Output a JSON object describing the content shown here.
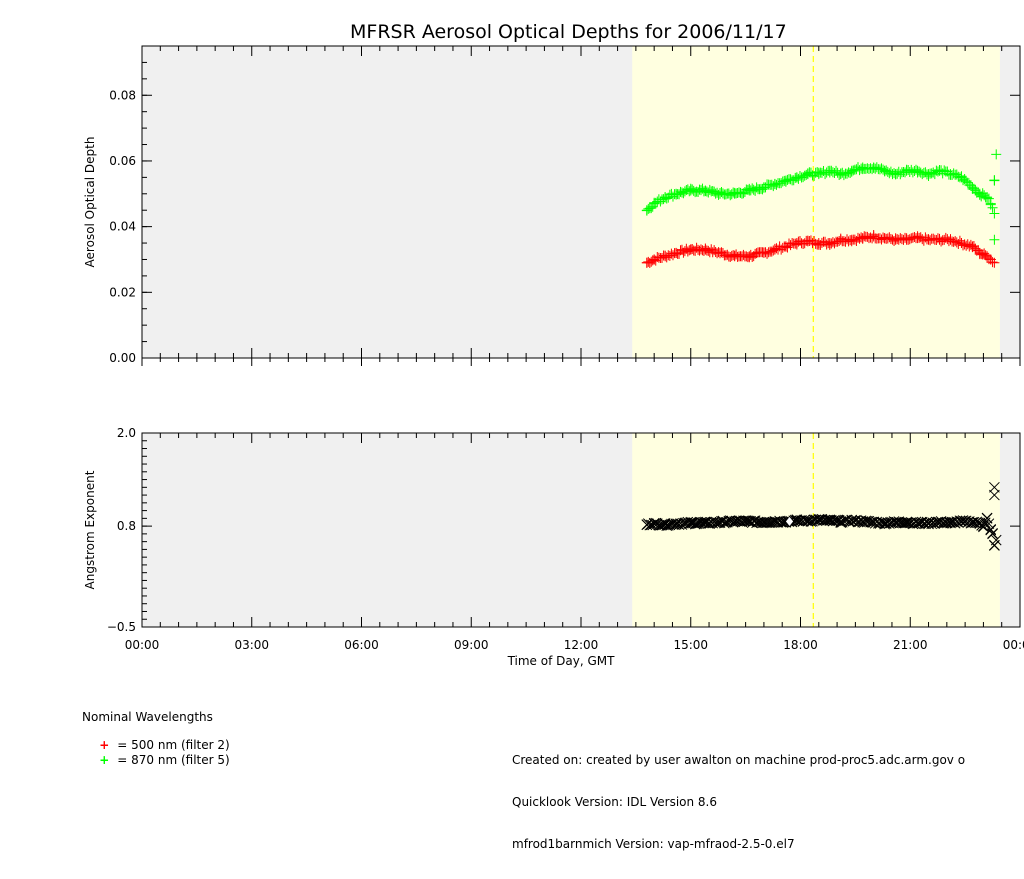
{
  "title": "MFRSR Aerosol Optical Depths for 2006/11/17",
  "colors": {
    "night": "#f0f0f0",
    "day": "#ffffe0",
    "noon": "#ffff00",
    "aod_500": "#ff0000",
    "aod_870": "#00ff00",
    "angstrom": "#000000",
    "flagged": "#ffffff"
  },
  "chart_data": [
    {
      "type": "scatter",
      "name": "aerosol-optical-depth",
      "ylabel": "Aerosol Optical Depth",
      "xlabel": "",
      "xlim": [
        0,
        24
      ],
      "ylim": [
        0,
        0.095
      ],
      "yticks": [
        0.0,
        0.02,
        0.04,
        0.06,
        0.08
      ],
      "ytick_labels": [
        "0.00",
        "0.02",
        "0.04",
        "0.06",
        "0.08"
      ],
      "daylight_span": [
        13.4,
        23.45
      ],
      "solar_noon": 18.35,
      "series": [
        {
          "name": "500 nm (filter 2)",
          "color": "#ff0000",
          "marker": "+",
          "x": [
            13.8,
            14.0,
            14.3,
            14.6,
            15.0,
            15.4,
            15.8,
            16.2,
            16.6,
            17.0,
            17.3,
            17.6,
            17.9,
            18.2,
            18.5,
            18.8,
            19.1,
            19.4,
            19.7,
            20.0,
            20.3,
            20.6,
            20.9,
            21.2,
            21.5,
            21.8,
            22.1,
            22.4,
            22.7,
            22.9,
            23.1,
            23.2,
            23.3
          ],
          "y": [
            0.029,
            0.03,
            0.031,
            0.032,
            0.033,
            0.033,
            0.032,
            0.031,
            0.031,
            0.032,
            0.033,
            0.034,
            0.035,
            0.0355,
            0.035,
            0.035,
            0.036,
            0.036,
            0.0365,
            0.037,
            0.0365,
            0.036,
            0.036,
            0.0365,
            0.036,
            0.036,
            0.036,
            0.035,
            0.034,
            0.032,
            0.031,
            0.03,
            0.029
          ]
        },
        {
          "name": "870 nm (filter 5)",
          "color": "#00ff00",
          "marker": "+",
          "x": [
            13.8,
            14.0,
            14.3,
            14.6,
            15.0,
            15.4,
            15.8,
            16.2,
            16.6,
            17.0,
            17.3,
            17.6,
            17.9,
            18.2,
            18.5,
            18.8,
            19.1,
            19.4,
            19.7,
            20.0,
            20.3,
            20.6,
            20.9,
            21.2,
            21.5,
            21.8,
            22.1,
            22.4,
            22.7,
            22.9,
            23.1,
            23.2,
            23.3,
            23.3,
            23.3,
            23.35
          ],
          "y": [
            0.045,
            0.047,
            0.049,
            0.05,
            0.051,
            0.051,
            0.05,
            0.05,
            0.051,
            0.052,
            0.053,
            0.054,
            0.055,
            0.056,
            0.056,
            0.057,
            0.056,
            0.057,
            0.058,
            0.058,
            0.057,
            0.056,
            0.057,
            0.057,
            0.056,
            0.057,
            0.056,
            0.055,
            0.052,
            0.05,
            0.049,
            0.047,
            0.044,
            0.036,
            0.054,
            0.062
          ]
        }
      ]
    },
    {
      "type": "scatter",
      "name": "angstrom-exponent",
      "ylabel": "Angstrom Exponent",
      "xlabel": "Time of Day, GMT",
      "xlim": [
        0,
        24
      ],
      "ylim": [
        -0.5,
        2.0
      ],
      "yticks": [
        -0.5,
        0.8,
        2.0
      ],
      "ytick_labels": [
        "−0.5",
        "0.8",
        "2.0"
      ],
      "xticks": [
        0,
        3,
        6,
        9,
        12,
        15,
        18,
        21,
        24
      ],
      "xtick_labels": [
        "00:00",
        "03:00",
        "06:00",
        "09:00",
        "12:00",
        "15:00",
        "18:00",
        "21:00",
        "00:00"
      ],
      "daylight_span": [
        13.4,
        23.45
      ],
      "solar_noon": 18.35,
      "series": [
        {
          "name": "Angstrom exponent",
          "color": "#000000",
          "marker": "x",
          "x": [
            13.8,
            14.0,
            14.3,
            14.6,
            15.0,
            15.4,
            15.8,
            16.2,
            16.6,
            17.0,
            17.3,
            17.6,
            17.9,
            18.2,
            18.5,
            18.8,
            19.1,
            19.4,
            19.7,
            20.0,
            20.3,
            20.6,
            20.9,
            21.2,
            21.5,
            21.8,
            22.1,
            22.4,
            22.7,
            22.9,
            23.0,
            23.1,
            23.2,
            23.25,
            23.3,
            23.3,
            23.3,
            23.35
          ],
          "y": [
            0.82,
            0.83,
            0.82,
            0.83,
            0.84,
            0.84,
            0.85,
            0.86,
            0.86,
            0.85,
            0.86,
            0.86,
            0.87,
            0.87,
            0.88,
            0.87,
            0.86,
            0.87,
            0.86,
            0.85,
            0.84,
            0.85,
            0.85,
            0.84,
            0.84,
            0.85,
            0.84,
            0.86,
            0.85,
            0.84,
            0.8,
            0.9,
            0.75,
            0.7,
            1.3,
            1.2,
            0.55,
            0.62
          ]
        },
        {
          "name": "flagged point",
          "color": "#ffffff",
          "marker": "diamond",
          "x": [
            17.7
          ],
          "y": [
            0.86
          ]
        }
      ]
    }
  ],
  "legend": {
    "heading": "Nominal Wavelengths",
    "items": [
      {
        "marker": "+",
        "label": "= 500 nm (filter 2)",
        "color": "#ff0000"
      },
      {
        "marker": "+",
        "label": "= 870 nm (filter 5)",
        "color": "#00ff00"
      }
    ]
  },
  "credits": {
    "created": "Created on: created by user awalton on machine prod-proc5.adc.arm.gov o",
    "quicklook": "Quicklook Version: IDL Version 8.6",
    "vap": "mfrod1barnmich Version: vap-mfraod-2.5-0.el7"
  }
}
